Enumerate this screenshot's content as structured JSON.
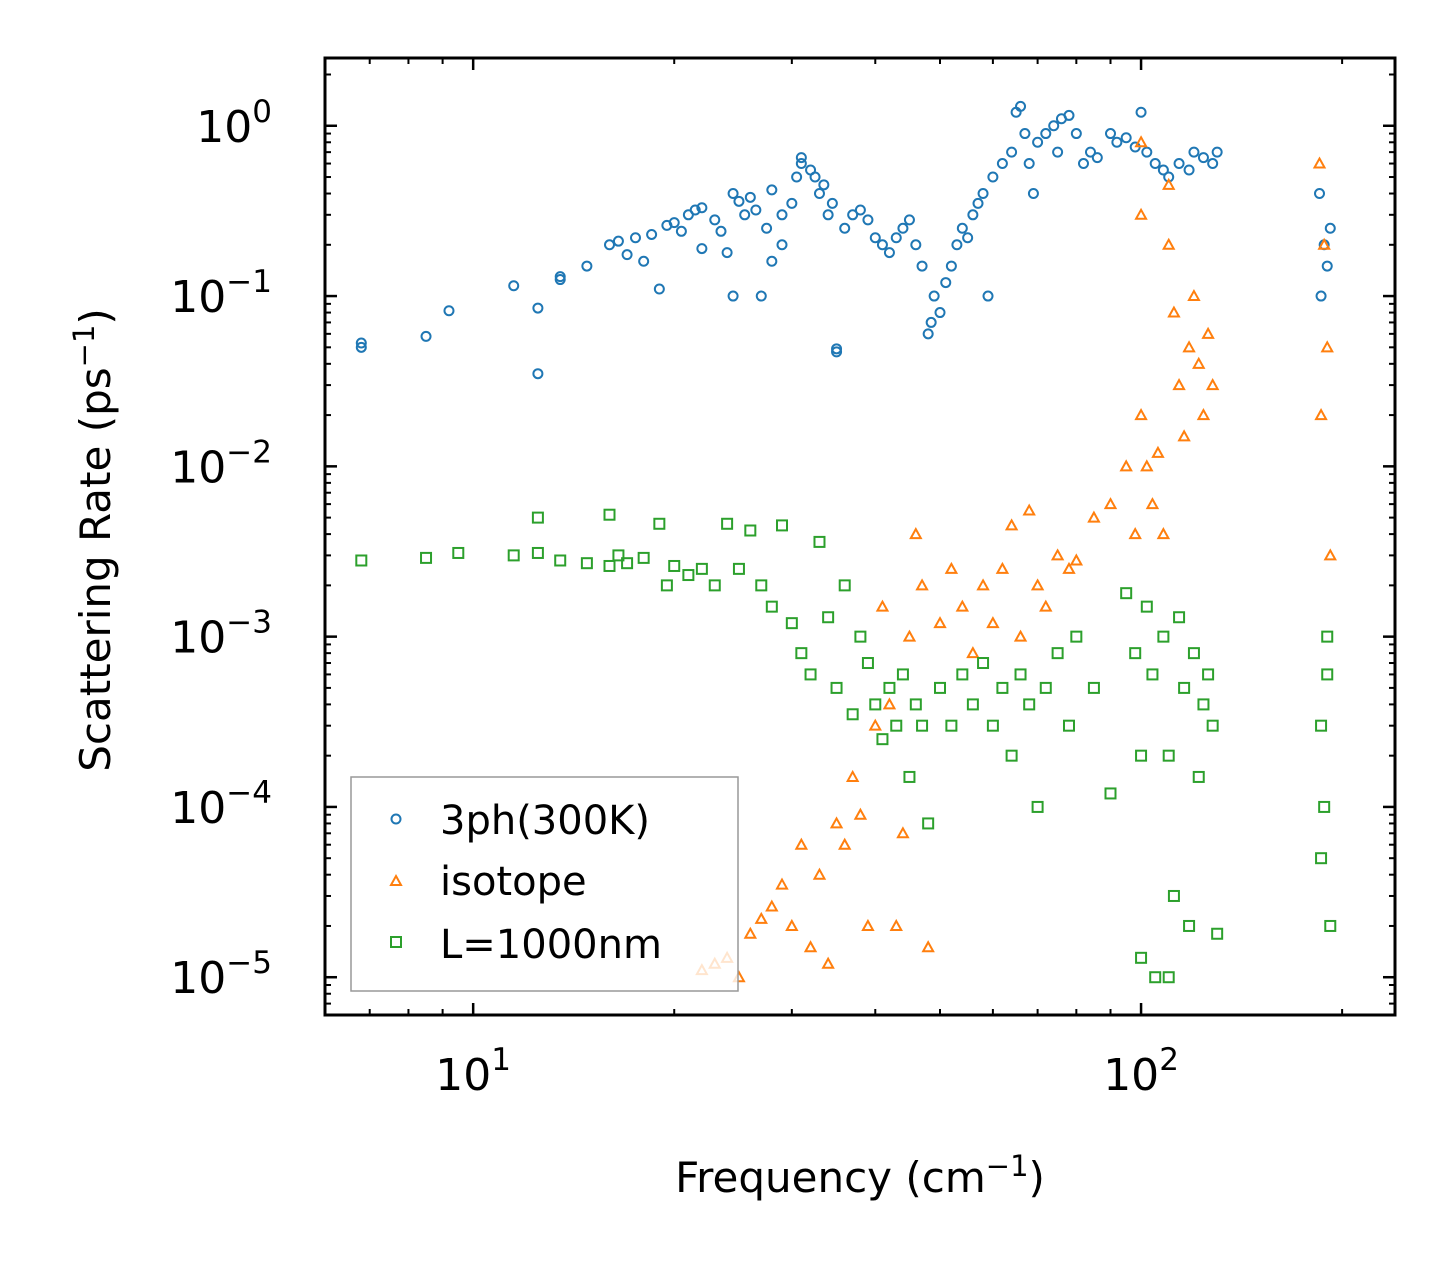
{
  "chart_data": {
    "type": "scatter",
    "title": "",
    "xlabel": "Frequency (cm",
    "xlabel_sup": "−1",
    "xlabel_tail": ")",
    "ylabel": "Scattering Rate (ps",
    "ylabel_sup": "−1",
    "ylabel_tail": ")",
    "xscale": "log",
    "yscale": "log",
    "xlim": [
      6.0,
      240.0
    ],
    "ylim": [
      6e-06,
      2.5
    ],
    "x_ticks": [
      {
        "value": 10,
        "base": "10",
        "exp": "1"
      },
      {
        "value": 100,
        "base": "10",
        "exp": "2"
      }
    ],
    "y_ticks": [
      {
        "value": 1,
        "base": "10",
        "exp": "0"
      },
      {
        "value": 0.1,
        "base": "10",
        "exp": "−1"
      },
      {
        "value": 0.01,
        "base": "10",
        "exp": "−2"
      },
      {
        "value": 0.001,
        "base": "10",
        "exp": "−3"
      },
      {
        "value": 0.0001,
        "base": "10",
        "exp": "−4"
      },
      {
        "value": 1e-05,
        "base": "10",
        "exp": "−5"
      }
    ],
    "legend_position": "lower-left",
    "series": [
      {
        "name": "3ph(300K)",
        "marker": "circle",
        "color": "#1f77b4",
        "points": [
          [
            6.8,
            0.053
          ],
          [
            6.8,
            0.05
          ],
          [
            8.5,
            0.058
          ],
          [
            9.2,
            0.082
          ],
          [
            11.5,
            0.115
          ],
          [
            12.5,
            0.085
          ],
          [
            12.5,
            0.035
          ],
          [
            13.5,
            0.13
          ],
          [
            13.5,
            0.125
          ],
          [
            14.8,
            0.15
          ],
          [
            16.0,
            0.2
          ],
          [
            16.5,
            0.21
          ],
          [
            17.0,
            0.175
          ],
          [
            17.5,
            0.22
          ],
          [
            18.0,
            0.16
          ],
          [
            18.5,
            0.23
          ],
          [
            19.0,
            0.11
          ],
          [
            19.5,
            0.26
          ],
          [
            20.0,
            0.27
          ],
          [
            20.5,
            0.24
          ],
          [
            21.0,
            0.3
          ],
          [
            21.5,
            0.32
          ],
          [
            22.0,
            0.33
          ],
          [
            22.0,
            0.19
          ],
          [
            23.0,
            0.28
          ],
          [
            23.5,
            0.24
          ],
          [
            24.0,
            0.18
          ],
          [
            24.5,
            0.4
          ],
          [
            24.5,
            0.1
          ],
          [
            25.0,
            0.36
          ],
          [
            25.5,
            0.3
          ],
          [
            26.0,
            0.38
          ],
          [
            26.5,
            0.32
          ],
          [
            27.0,
            0.1
          ],
          [
            27.5,
            0.25
          ],
          [
            28.0,
            0.42
          ],
          [
            28.0,
            0.16
          ],
          [
            29.0,
            0.3
          ],
          [
            29.0,
            0.2
          ],
          [
            30.0,
            0.35
          ],
          [
            30.5,
            0.5
          ],
          [
            31.0,
            0.6
          ],
          [
            31.0,
            0.65
          ],
          [
            32.0,
            0.55
          ],
          [
            32.5,
            0.5
          ],
          [
            33.0,
            0.4
          ],
          [
            33.5,
            0.45
          ],
          [
            34.0,
            0.3
          ],
          [
            34.5,
            0.35
          ],
          [
            35.0,
            0.047
          ],
          [
            35.0,
            0.049
          ],
          [
            36.0,
            0.25
          ],
          [
            37.0,
            0.3
          ],
          [
            38.0,
            0.32
          ],
          [
            39.0,
            0.28
          ],
          [
            40.0,
            0.22
          ],
          [
            41.0,
            0.2
          ],
          [
            42.0,
            0.18
          ],
          [
            43.0,
            0.22
          ],
          [
            44.0,
            0.25
          ],
          [
            45.0,
            0.28
          ],
          [
            46.0,
            0.2
          ],
          [
            47.0,
            0.15
          ],
          [
            48.0,
            0.06
          ],
          [
            48.5,
            0.07
          ],
          [
            49.0,
            0.1
          ],
          [
            50.0,
            0.08
          ],
          [
            51.0,
            0.12
          ],
          [
            52.0,
            0.15
          ],
          [
            53.0,
            0.2
          ],
          [
            54.0,
            0.25
          ],
          [
            55.0,
            0.22
          ],
          [
            56.0,
            0.3
          ],
          [
            57.0,
            0.35
          ],
          [
            58.0,
            0.4
          ],
          [
            59.0,
            0.1
          ],
          [
            60.0,
            0.5
          ],
          [
            62.0,
            0.6
          ],
          [
            64.0,
            0.7
          ],
          [
            65.0,
            1.2
          ],
          [
            66.0,
            1.3
          ],
          [
            67.0,
            0.9
          ],
          [
            68.0,
            0.6
          ],
          [
            69.0,
            0.4
          ],
          [
            70.0,
            0.8
          ],
          [
            72.0,
            0.9
          ],
          [
            74.0,
            1.0
          ],
          [
            75.0,
            0.7
          ],
          [
            76.0,
            1.1
          ],
          [
            78.0,
            1.15
          ],
          [
            80.0,
            0.9
          ],
          [
            82.0,
            0.6
          ],
          [
            84.0,
            0.7
          ],
          [
            86.0,
            0.65
          ],
          [
            90.0,
            0.9
          ],
          [
            92.0,
            0.8
          ],
          [
            95.0,
            0.85
          ],
          [
            98.0,
            0.75
          ],
          [
            100.0,
            1.2
          ],
          [
            102.0,
            0.7
          ],
          [
            105.0,
            0.6
          ],
          [
            108.0,
            0.55
          ],
          [
            110.0,
            0.5
          ],
          [
            114.0,
            0.6
          ],
          [
            118.0,
            0.55
          ],
          [
            120.0,
            0.7
          ],
          [
            124.0,
            0.65
          ],
          [
            128.0,
            0.6
          ],
          [
            130.0,
            0.7
          ],
          [
            185.0,
            0.4
          ],
          [
            188.0,
            0.2
          ],
          [
            190.0,
            0.15
          ],
          [
            192.0,
            0.25
          ],
          [
            186.0,
            0.1
          ]
        ]
      },
      {
        "name": "isotope",
        "marker": "triangle",
        "color": "#ff7f0e",
        "points": [
          [
            22.0,
            1.1e-05
          ],
          [
            23.0,
            1.2e-05
          ],
          [
            24.0,
            1.3e-05
          ],
          [
            25.0,
            1e-05
          ],
          [
            26.0,
            1.8e-05
          ],
          [
            27.0,
            2.2e-05
          ],
          [
            28.0,
            2.6e-05
          ],
          [
            29.0,
            3.5e-05
          ],
          [
            30.0,
            2e-05
          ],
          [
            31.0,
            6e-05
          ],
          [
            32.0,
            1.5e-05
          ],
          [
            33.0,
            4e-05
          ],
          [
            34.0,
            1.2e-05
          ],
          [
            35.0,
            8e-05
          ],
          [
            36.0,
            6e-05
          ],
          [
            37.0,
            0.00015
          ],
          [
            38.0,
            9e-05
          ],
          [
            39.0,
            2e-05
          ],
          [
            40.0,
            0.0003
          ],
          [
            41.0,
            0.0015
          ],
          [
            42.0,
            0.0004
          ],
          [
            43.0,
            2e-05
          ],
          [
            44.0,
            7e-05
          ],
          [
            45.0,
            0.001
          ],
          [
            46.0,
            0.004
          ],
          [
            47.0,
            0.002
          ],
          [
            48.0,
            1.5e-05
          ],
          [
            50.0,
            0.0012
          ],
          [
            52.0,
            0.0025
          ],
          [
            54.0,
            0.0015
          ],
          [
            56.0,
            0.0008
          ],
          [
            58.0,
            0.002
          ],
          [
            60.0,
            0.0012
          ],
          [
            62.0,
            0.0025
          ],
          [
            64.0,
            0.0045
          ],
          [
            66.0,
            0.001
          ],
          [
            68.0,
            0.0055
          ],
          [
            70.0,
            0.002
          ],
          [
            72.0,
            0.0015
          ],
          [
            75.0,
            0.003
          ],
          [
            78.0,
            0.0025
          ],
          [
            80.0,
            0.0028
          ],
          [
            85.0,
            0.005
          ],
          [
            90.0,
            0.006
          ],
          [
            95.0,
            0.01
          ],
          [
            98.0,
            0.004
          ],
          [
            100.0,
            0.02
          ],
          [
            100.0,
            0.8
          ],
          [
            100.0,
            0.3
          ],
          [
            102.0,
            0.01
          ],
          [
            104.0,
            0.006
          ],
          [
            106.0,
            0.012
          ],
          [
            108.0,
            0.004
          ],
          [
            110.0,
            0.45
          ],
          [
            110.0,
            0.2
          ],
          [
            112.0,
            0.08
          ],
          [
            114.0,
            0.03
          ],
          [
            116.0,
            0.015
          ],
          [
            118.0,
            0.05
          ],
          [
            120.0,
            0.1
          ],
          [
            122.0,
            0.04
          ],
          [
            124.0,
            0.02
          ],
          [
            126.0,
            0.06
          ],
          [
            128.0,
            0.03
          ],
          [
            185.0,
            0.6
          ],
          [
            188.0,
            0.2
          ],
          [
            190.0,
            0.05
          ],
          [
            186.0,
            0.02
          ],
          [
            192.0,
            0.003
          ]
        ]
      },
      {
        "name": "L=1000nm",
        "marker": "square",
        "color": "#2ca02c",
        "points": [
          [
            6.8,
            0.0028
          ],
          [
            8.5,
            0.0029
          ],
          [
            9.5,
            0.0031
          ],
          [
            11.5,
            0.003
          ],
          [
            12.5,
            0.0031
          ],
          [
            12.5,
            0.005
          ],
          [
            13.5,
            0.0028
          ],
          [
            14.8,
            0.0027
          ],
          [
            16.0,
            0.0052
          ],
          [
            16.0,
            0.0026
          ],
          [
            16.5,
            0.003
          ],
          [
            17.0,
            0.0027
          ],
          [
            18.0,
            0.0029
          ],
          [
            19.0,
            0.0046
          ],
          [
            19.5,
            0.002
          ],
          [
            20.0,
            0.0026
          ],
          [
            21.0,
            0.0023
          ],
          [
            22.0,
            0.0025
          ],
          [
            23.0,
            0.002
          ],
          [
            24.0,
            0.0046
          ],
          [
            25.0,
            0.0025
          ],
          [
            26.0,
            0.0042
          ],
          [
            27.0,
            0.002
          ],
          [
            28.0,
            0.0015
          ],
          [
            29.0,
            0.0045
          ],
          [
            30.0,
            0.0012
          ],
          [
            31.0,
            0.0008
          ],
          [
            32.0,
            0.0006
          ],
          [
            33.0,
            0.0036
          ],
          [
            34.0,
            0.0013
          ],
          [
            35.0,
            0.0005
          ],
          [
            36.0,
            0.002
          ],
          [
            37.0,
            0.00035
          ],
          [
            38.0,
            0.001
          ],
          [
            39.0,
            0.0007
          ],
          [
            40.0,
            0.0004
          ],
          [
            41.0,
            0.00025
          ],
          [
            42.0,
            0.0005
          ],
          [
            43.0,
            0.0003
          ],
          [
            44.0,
            0.0006
          ],
          [
            45.0,
            0.00015
          ],
          [
            46.0,
            0.0004
          ],
          [
            47.0,
            0.0003
          ],
          [
            48.0,
            8e-05
          ],
          [
            50.0,
            0.0005
          ],
          [
            52.0,
            0.0003
          ],
          [
            54.0,
            0.0006
          ],
          [
            56.0,
            0.0004
          ],
          [
            58.0,
            0.0007
          ],
          [
            60.0,
            0.0003
          ],
          [
            62.0,
            0.0005
          ],
          [
            64.0,
            0.0002
          ],
          [
            66.0,
            0.0006
          ],
          [
            68.0,
            0.0004
          ],
          [
            70.0,
            0.0001
          ],
          [
            72.0,
            0.0005
          ],
          [
            75.0,
            0.0008
          ],
          [
            78.0,
            0.0003
          ],
          [
            80.0,
            0.001
          ],
          [
            85.0,
            0.0005
          ],
          [
            90.0,
            0.00012
          ],
          [
            95.0,
            0.0018
          ],
          [
            98.0,
            0.0008
          ],
          [
            100.0,
            1.3e-05
          ],
          [
            100.0,
            0.0002
          ],
          [
            102.0,
            0.0015
          ],
          [
            104.0,
            0.0006
          ],
          [
            105.0,
            1e-05
          ],
          [
            108.0,
            0.001
          ],
          [
            110.0,
            0.0002
          ],
          [
            110.0,
            1e-05
          ],
          [
            112.0,
            3e-05
          ],
          [
            114.0,
            0.0013
          ],
          [
            116.0,
            0.0005
          ],
          [
            118.0,
            2e-05
          ],
          [
            120.0,
            0.0008
          ],
          [
            122.0,
            0.00015
          ],
          [
            124.0,
            0.0004
          ],
          [
            126.0,
            0.0006
          ],
          [
            128.0,
            0.0003
          ],
          [
            130.0,
            1.8e-05
          ],
          [
            186.0,
            0.0003
          ],
          [
            188.0,
            0.0001
          ],
          [
            190.0,
            0.001
          ],
          [
            192.0,
            2e-05
          ],
          [
            186.0,
            5e-05
          ],
          [
            190.0,
            0.0006
          ]
        ]
      }
    ]
  }
}
